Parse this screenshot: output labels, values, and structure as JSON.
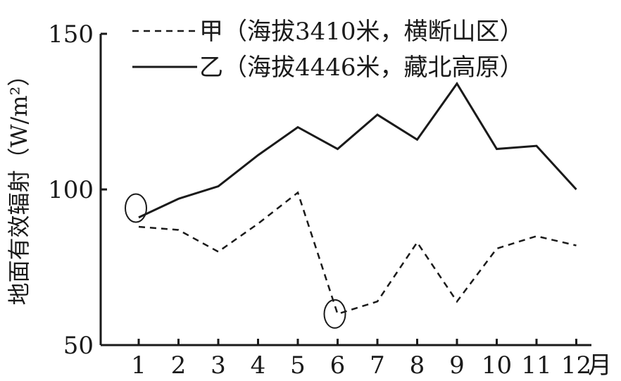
{
  "chart_data": {
    "type": "line",
    "title": "",
    "xlabel": "月",
    "ylabel": "地面有效辐射（W/m²）",
    "categories": [
      "1",
      "2",
      "3",
      "4",
      "5",
      "6",
      "7",
      "8",
      "9",
      "10",
      "11",
      "12"
    ],
    "ylim": [
      50,
      150
    ],
    "yticks": [
      "50",
      "100",
      "150"
    ],
    "grid": false,
    "legend_position": "top",
    "series": [
      {
        "name": "甲（海拔3410米，横断山区）",
        "style": "dashed",
        "color": "#1a1a1a",
        "values": [
          88,
          87,
          80,
          89,
          99,
          60,
          64,
          83,
          64,
          81,
          85,
          82
        ]
      },
      {
        "name": "乙（海拔4446米，藏北高原）",
        "style": "solid",
        "color": "#1a1a1a",
        "values": [
          91,
          97,
          101,
          111,
          120,
          113,
          124,
          116,
          134,
          113,
          114,
          100
        ]
      }
    ],
    "annotations": [
      {
        "type": "ellipse",
        "at_category": "1",
        "at_value": 94
      },
      {
        "type": "ellipse",
        "at_category": "6",
        "at_value": 60
      }
    ]
  }
}
